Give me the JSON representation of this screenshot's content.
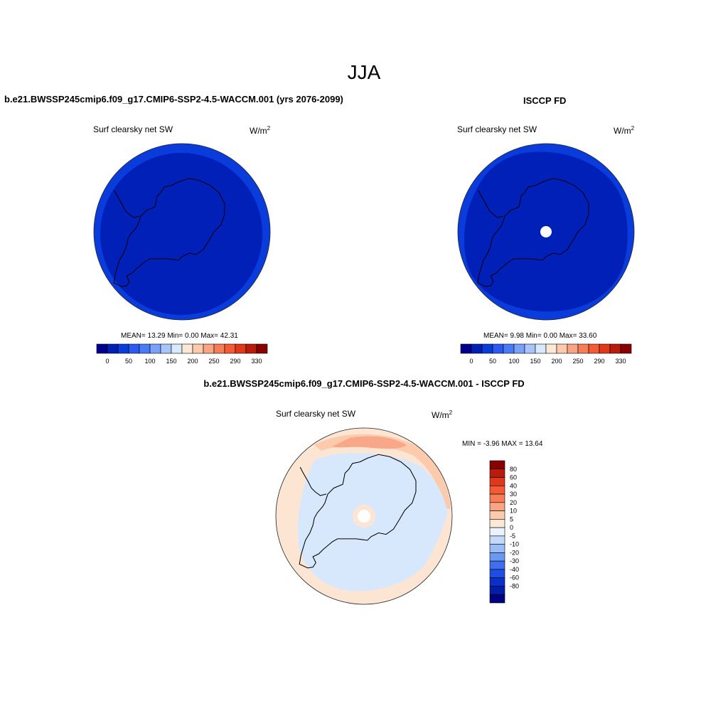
{
  "figure_title": "JJA",
  "panels": [
    {
      "header": "b.e21.BWSSP245cmip6.f09_g17.CMIP6-SSP2-4.5-WACCM.001 (yrs 2076-2099)",
      "variable": "Surf clearsky net SW",
      "units_base": "W/m",
      "units_sup": "2",
      "stats": "MEAN=  13.29  Min=   0.00  Max=  42.31"
    },
    {
      "header": "ISCCP FD",
      "variable": "Surf clearsky net SW",
      "units_base": "W/m",
      "units_sup": "2",
      "stats": "MEAN=   9.98  Min=   0.00  Max=  33.60"
    },
    {
      "header": "b.e21.BWSSP245cmip6.f09_g17.CMIP6-SSP2-4.5-WACCM.001 - ISCCP FD",
      "variable": "Surf clearsky net SW",
      "units_base": "W/m",
      "units_sup": "2",
      "stats": "MIN =  -3.96 MAX =  13.64"
    }
  ],
  "colorbar_abs": {
    "colors": [
      "#00008c",
      "#0020b4",
      "#0a3cd8",
      "#2a5af0",
      "#4a7af5",
      "#7aa0f8",
      "#a8c4fb",
      "#d8e8fd",
      "#fde8d6",
      "#fccbae",
      "#f9a482",
      "#f77d58",
      "#f45a33",
      "#e0381a",
      "#b81c0a",
      "#8a0000"
    ],
    "tick_labels": [
      "0",
      "50",
      "100",
      "150",
      "200",
      "250",
      "290",
      "330"
    ]
  },
  "colorbar_diff": {
    "colors": [
      "#8a0000",
      "#b81c0a",
      "#e0381a",
      "#f45a33",
      "#f77d58",
      "#f9a482",
      "#fccbae",
      "#fde8d6",
      "#eaf2fe",
      "#c4d8fb",
      "#9cbcf8",
      "#6a98f3",
      "#3f6eee",
      "#1f4ee3",
      "#0a30c8",
      "#001ea8",
      "#000080"
    ],
    "tick_labels": [
      "80",
      "60",
      "40",
      "30",
      "20",
      "10",
      "5",
      "0",
      "-5",
      "-10",
      "-20",
      "-30",
      "-40",
      "-60",
      "-80"
    ]
  }
}
